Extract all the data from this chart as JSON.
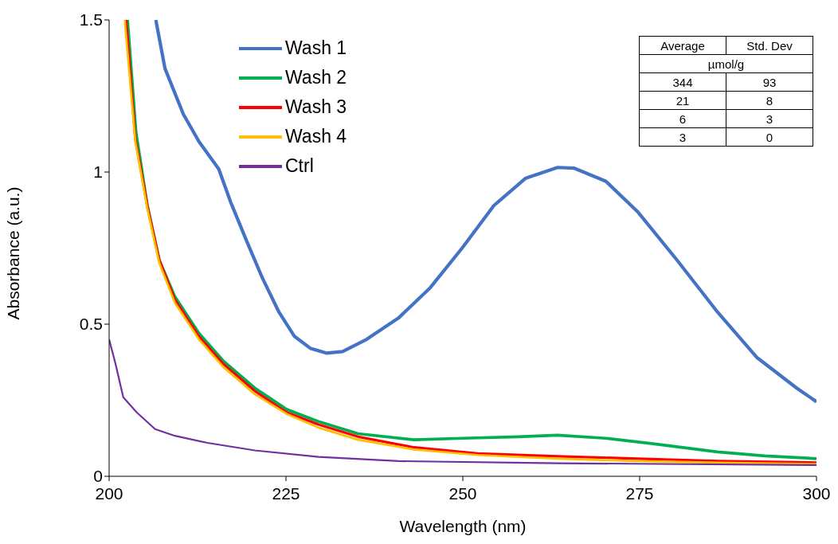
{
  "chart_data": {
    "type": "line",
    "xlabel": "Wavelength (nm)",
    "ylabel": "Absorbance (a.u.)",
    "xlim": [
      200,
      300
    ],
    "xticks": [
      200,
      225,
      250,
      275,
      300
    ],
    "ylim": [
      0,
      1.5
    ],
    "yticks": [
      0,
      0.5,
      1,
      1.5
    ],
    "grid": false,
    "legend": "top left",
    "marker": "none",
    "line_style": "solid",
    "annotations": [
      "Average",
      "Std. Dev",
      "µmol/g",
      "344",
      "93",
      "21",
      "8",
      "6",
      "3",
      "3",
      "0"
    ],
    "series": [
      {
        "name": "Wash 1",
        "color": "#4472c4",
        "x": [
          206.6,
          207.9,
          210.5,
          212.7,
          215.5,
          217.2,
          219.5,
          221.7,
          224,
          226.2,
          228.5,
          230.7,
          233,
          236.4,
          240.9,
          245.4,
          249.9,
          254.4,
          258.9,
          263.4,
          265.7,
          270.2,
          274.7,
          280.3,
          286,
          291.6,
          297.2,
          300
        ],
        "values": [
          1.5,
          1.34,
          1.19,
          1.1,
          1.01,
          0.9,
          0.77,
          0.65,
          0.54,
          0.46,
          0.42,
          0.405,
          0.41,
          0.45,
          0.52,
          0.62,
          0.75,
          0.89,
          0.98,
          1.015,
          1.013,
          0.97,
          0.87,
          0.71,
          0.54,
          0.39,
          0.29,
          0.245
        ]
      },
      {
        "name": "Wash 2",
        "color": "#00b050",
        "x": [
          202.6,
          203.8,
          205.4,
          207.1,
          209.3,
          212.7,
          216.1,
          220.6,
          225.1,
          229.6,
          235.2,
          243.1,
          249.9,
          257.8,
          263.4,
          270.2,
          276.9,
          286,
          292.7,
          300
        ],
        "values": [
          1.5,
          1.13,
          0.89,
          0.71,
          0.59,
          0.47,
          0.38,
          0.29,
          0.22,
          0.18,
          0.14,
          0.12,
          0.125,
          0.13,
          0.135,
          0.125,
          0.107,
          0.08,
          0.067,
          0.058
        ]
      },
      {
        "name": "Wash 3",
        "color": "#ff0000",
        "x": [
          202.4,
          203.7,
          205.4,
          207.1,
          209.3,
          212.7,
          216.1,
          220.6,
          225.1,
          229.6,
          235.2,
          243.1,
          252.1,
          263.4,
          274.7,
          286,
          300
        ],
        "values": [
          1.5,
          1.11,
          0.89,
          0.71,
          0.58,
          0.46,
          0.37,
          0.28,
          0.21,
          0.17,
          0.13,
          0.095,
          0.075,
          0.066,
          0.058,
          0.05,
          0.045
        ]
      },
      {
        "name": "Wash 4",
        "color": "#ffc000",
        "x": [
          202.2,
          203.7,
          205.4,
          207.1,
          209.3,
          212.7,
          216.1,
          220.6,
          225.1,
          229.6,
          235.2,
          243.1,
          252.1,
          263.4,
          274.7,
          286,
          300
        ],
        "values": [
          1.5,
          1.1,
          0.88,
          0.7,
          0.57,
          0.45,
          0.36,
          0.27,
          0.205,
          0.16,
          0.12,
          0.088,
          0.07,
          0.058,
          0.05,
          0.045,
          0.04
        ]
      },
      {
        "name": "Ctrl",
        "color": "#7030a0",
        "x": [
          200,
          200.9,
          202,
          203.9,
          206.5,
          209.3,
          213.9,
          220.6,
          229.6,
          240.9,
          263.4,
          300
        ],
        "values": [
          0.45,
          0.37,
          0.26,
          0.21,
          0.155,
          0.133,
          0.11,
          0.085,
          0.064,
          0.05,
          0.043,
          0.037
        ]
      }
    ]
  }
}
